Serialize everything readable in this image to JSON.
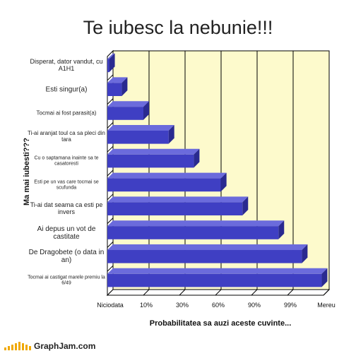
{
  "brand": "GraphJam.com",
  "colors": {
    "plot_bg": "#fdfacc",
    "bar": "#3f3fc3",
    "bar_top": "#6b6bdc",
    "bar_side": "#2a2a90",
    "grid": "#000000"
  },
  "chart_data": {
    "type": "bar",
    "orientation": "horizontal",
    "title": "Te iubesc la nebunie!!!",
    "ylabel": "Ma mai iubesti???",
    "xlabel": "Probabilitatea sa auzi aceste cuvinte...",
    "x_tick_labels": [
      "Niciodata",
      "10%",
      "30%",
      "60%",
      "90%",
      "99%",
      "Mereu"
    ],
    "xlim": [
      0,
      6
    ],
    "grid": true,
    "categories": [
      "Disperat, dator vandut, cu A1H1",
      "Esti singur(a)",
      "Tocmai ai fost parasit(a)",
      "Ti-ai aranjat toul ca sa pleci din tara",
      "Cu o saptamana inainte sa te casatoresti",
      "Esti pe un vas care tocmai se scufunda",
      "Ti-ai dat seama ca esti pe invers",
      "Ai depus un vot de castitate",
      "De Dragobete (o data in an)",
      "Tocmai ai castigat marele premiu la 6/49"
    ],
    "values": [
      0.05,
      0.4,
      1.0,
      1.7,
      2.4,
      3.15,
      3.75,
      4.75,
      5.4,
      5.95
    ]
  }
}
